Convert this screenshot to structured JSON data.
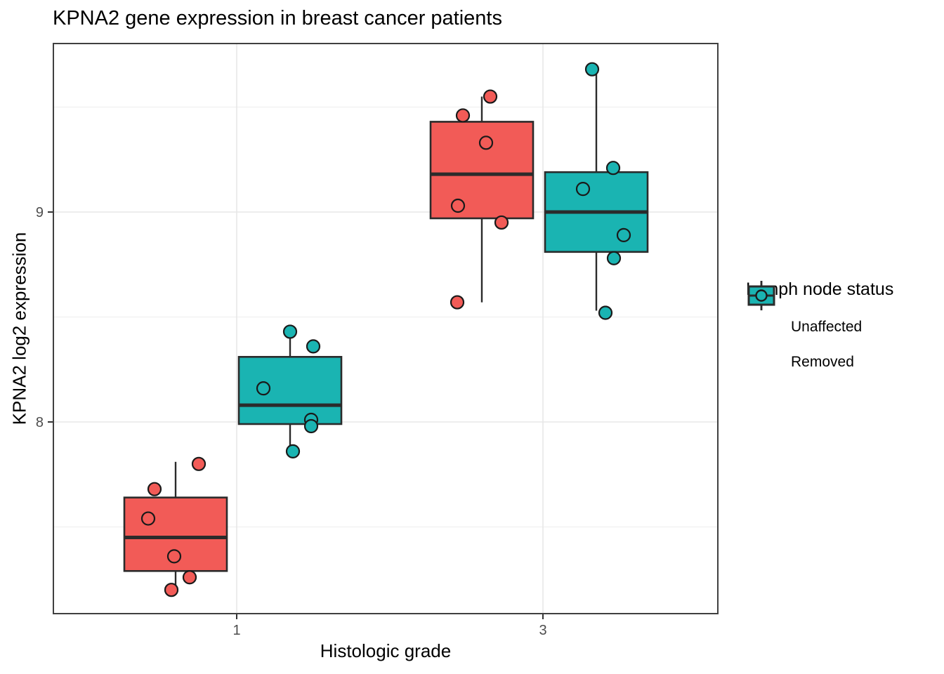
{
  "chart_data": {
    "type": "boxplot",
    "title": "KPNA2 gene expression in breast cancer patients",
    "xlabel": "Histologic grade",
    "ylabel": "KPNA2 log2 expression",
    "x_categories": [
      "1",
      "3"
    ],
    "y_axis": {
      "ticks": [
        8,
        9
      ],
      "minor_ticks": [
        7.5,
        8.5,
        9.5
      ],
      "ylim": [
        7.09,
        9.8
      ]
    },
    "legend": {
      "title": "Lymph node status",
      "position": "right",
      "entries": [
        {
          "label": "Unaffected",
          "color": "#F25B57"
        },
        {
          "label": "Removed",
          "color": "#1AB4B2"
        }
      ]
    },
    "colors": {
      "box_stroke": "#2B2B2B",
      "grid_major": "#E7E7E7",
      "grid_minor": "#F0F0F0",
      "panel_border": "#404040",
      "tick_mark": "#333333",
      "tick_label": "#4D4D4D"
    },
    "series": [
      {
        "name": "Unaffected",
        "color": "#F25B57",
        "boxes": [
          {
            "category": "1",
            "whisker_low": 7.21,
            "q1": 7.29,
            "median": 7.45,
            "q3": 7.64,
            "whisker_high": 7.81,
            "points": [
              [
                33,
                7.8
              ],
              [
                -30,
                7.68
              ],
              [
                -39,
                7.54
              ],
              [
                -2,
                7.36
              ],
              [
                20,
                7.26
              ],
              [
                -6,
                7.2
              ]
            ]
          },
          {
            "category": "3",
            "whisker_low": 8.57,
            "q1": 8.97,
            "median": 9.18,
            "q3": 9.43,
            "whisker_high": 9.55,
            "points": [
              [
                12,
                9.55
              ],
              [
                -27,
                9.46
              ],
              [
                6,
                9.33
              ],
              [
                -34,
                9.03
              ],
              [
                28,
                8.95
              ],
              [
                -35,
                8.57
              ]
            ]
          }
        ]
      },
      {
        "name": "Removed",
        "color": "#1AB4B2",
        "boxes": [
          {
            "category": "1",
            "whisker_low": 7.87,
            "q1": 7.99,
            "median": 8.08,
            "q3": 8.31,
            "whisker_high": 8.43,
            "points": [
              [
                0,
                8.43
              ],
              [
                33,
                8.36
              ],
              [
                -38,
                8.16
              ],
              [
                30,
                8.01
              ],
              [
                30,
                7.98
              ],
              [
                4,
                7.86
              ]
            ]
          },
          {
            "category": "3",
            "whisker_low": 8.53,
            "q1": 8.81,
            "median": 9.0,
            "q3": 9.19,
            "whisker_high": 9.66,
            "points": [
              [
                -6,
                9.68
              ],
              [
                24,
                9.21
              ],
              [
                -19,
                9.11
              ],
              [
                39,
                8.89
              ],
              [
                25,
                8.78
              ],
              [
                13,
                8.52
              ]
            ]
          }
        ]
      }
    ]
  }
}
